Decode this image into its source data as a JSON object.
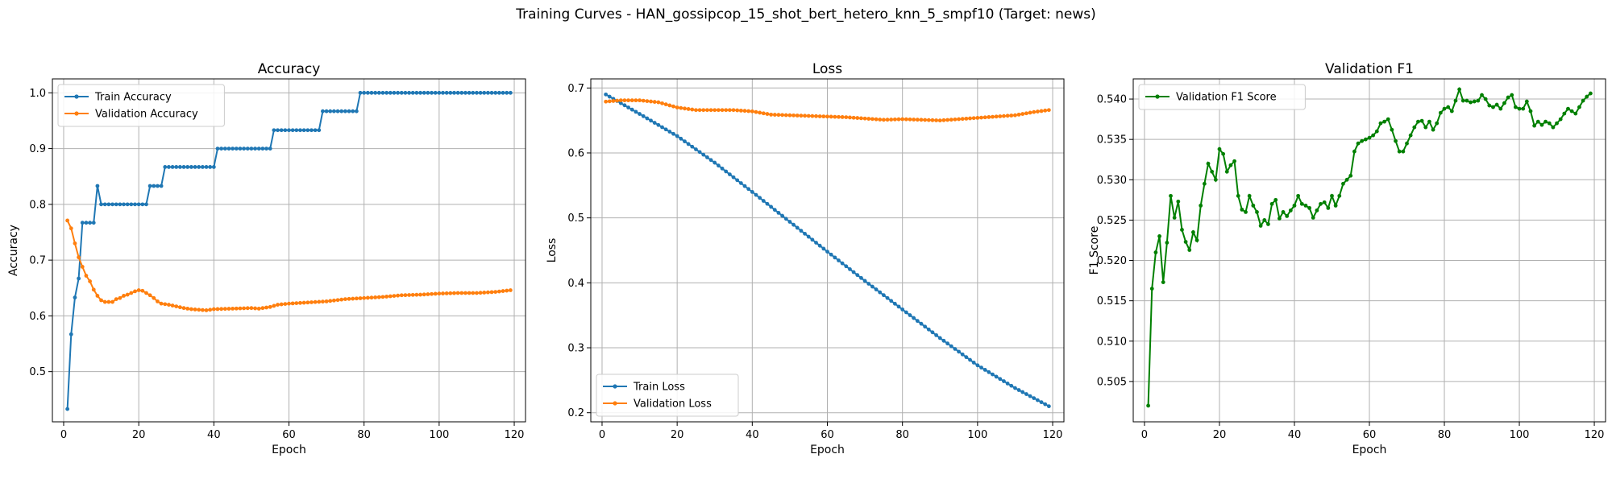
{
  "suptitle": "Training Curves - HAN_gossipcop_15_shot_bert_hetero_knn_5_smpf10 (Target: news)",
  "colors": {
    "train": "#1f77b4",
    "val": "#ff7f0e",
    "f1": "#008000",
    "grid": "#b0b0b0"
  },
  "chart_data": [
    {
      "type": "line",
      "title": "Accuracy",
      "xlabel": "Epoch",
      "ylabel": "Accuracy",
      "xlim": [
        -3,
        123
      ],
      "ylim": [
        0.41,
        1.025
      ],
      "xticks": [
        0,
        20,
        40,
        60,
        80,
        100,
        120
      ],
      "yticks": [
        0.5,
        0.6,
        0.7,
        0.8,
        0.9,
        1.0
      ],
      "ytick_labels": [
        "0.5",
        "0.6",
        "0.7",
        "0.8",
        "0.9",
        "1.0"
      ],
      "grid": true,
      "legend_position": "top-left",
      "x": {
        "start": 1,
        "end": 119
      },
      "series": [
        {
          "name": "Train Accuracy",
          "color": "#1f77b4",
          "steps": [
            [
              1,
              0.433
            ],
            [
              2,
              0.567
            ],
            [
              3,
              0.633
            ],
            [
              4,
              0.667
            ],
            [
              5,
              0.767
            ],
            [
              9,
              0.833
            ],
            [
              10,
              0.8
            ],
            [
              23,
              0.833
            ],
            [
              27,
              0.867
            ],
            [
              41,
              0.9
            ],
            [
              56,
              0.933
            ],
            [
              69,
              0.967
            ],
            [
              79,
              1.0
            ]
          ]
        },
        {
          "name": "Validation Accuracy",
          "color": "#ff7f0e",
          "points": [
            [
              1,
              0.771
            ],
            [
              2,
              0.757
            ],
            [
              3,
              0.73
            ],
            [
              4,
              0.705
            ],
            [
              5,
              0.688
            ],
            [
              6,
              0.672
            ],
            [
              7,
              0.662
            ],
            [
              8,
              0.647
            ],
            [
              9,
              0.636
            ],
            [
              10,
              0.628
            ],
            [
              11,
              0.625
            ],
            [
              12,
              0.625
            ],
            [
              13,
              0.625
            ],
            [
              14,
              0.63
            ],
            [
              15,
              0.632
            ],
            [
              16,
              0.636
            ],
            [
              17,
              0.638
            ],
            [
              18,
              0.641
            ],
            [
              19,
              0.644
            ],
            [
              20,
              0.646
            ],
            [
              21,
              0.645
            ],
            [
              22,
              0.641
            ],
            [
              23,
              0.637
            ],
            [
              24,
              0.632
            ],
            [
              25,
              0.626
            ],
            [
              26,
              0.622
            ],
            [
              28,
              0.62
            ],
            [
              30,
              0.617
            ],
            [
              32,
              0.614
            ],
            [
              34,
              0.612
            ],
            [
              36,
              0.611
            ],
            [
              38,
              0.61
            ],
            [
              40,
              0.612
            ],
            [
              45,
              0.613
            ],
            [
              50,
              0.614
            ],
            [
              52,
              0.613
            ],
            [
              55,
              0.616
            ],
            [
              57,
              0.62
            ],
            [
              60,
              0.622
            ],
            [
              65,
              0.624
            ],
            [
              70,
              0.626
            ],
            [
              75,
              0.63
            ],
            [
              80,
              0.632
            ],
            [
              85,
              0.634
            ],
            [
              90,
              0.637
            ],
            [
              95,
              0.638
            ],
            [
              100,
              0.64
            ],
            [
              105,
              0.641
            ],
            [
              110,
              0.641
            ],
            [
              115,
              0.643
            ],
            [
              119,
              0.646
            ]
          ]
        }
      ]
    },
    {
      "type": "line",
      "title": "Loss",
      "xlabel": "Epoch",
      "ylabel": "Loss",
      "xlim": [
        -3,
        123
      ],
      "ylim": [
        0.186,
        0.714
      ],
      "xticks": [
        0,
        20,
        40,
        60,
        80,
        100,
        120
      ],
      "yticks": [
        0.2,
        0.3,
        0.4,
        0.5,
        0.6,
        0.7
      ],
      "ytick_labels": [
        "0.2",
        "0.3",
        "0.4",
        "0.5",
        "0.6",
        "0.7"
      ],
      "grid": true,
      "legend_position": "bottom-left",
      "x": {
        "start": 1,
        "end": 119
      },
      "series": [
        {
          "name": "Train Loss",
          "color": "#1f77b4",
          "points": [
            [
              1,
              0.69
            ],
            [
              10,
              0.66
            ],
            [
              20,
              0.626
            ],
            [
              30,
              0.585
            ],
            [
              40,
              0.54
            ],
            [
              50,
              0.494
            ],
            [
              60,
              0.448
            ],
            [
              70,
              0.403
            ],
            [
              80,
              0.359
            ],
            [
              90,
              0.315
            ],
            [
              100,
              0.273
            ],
            [
              110,
              0.238
            ],
            [
              119,
              0.21
            ]
          ]
        },
        {
          "name": "Validation Loss",
          "color": "#ff7f0e",
          "points": [
            [
              1,
              0.679
            ],
            [
              5,
              0.681
            ],
            [
              10,
              0.681
            ],
            [
              15,
              0.678
            ],
            [
              20,
              0.67
            ],
            [
              25,
              0.666
            ],
            [
              30,
              0.666
            ],
            [
              35,
              0.666
            ],
            [
              40,
              0.664
            ],
            [
              45,
              0.659
            ],
            [
              50,
              0.658
            ],
            [
              55,
              0.657
            ],
            [
              60,
              0.656
            ],
            [
              65,
              0.655
            ],
            [
              70,
              0.653
            ],
            [
              75,
              0.651
            ],
            [
              80,
              0.652
            ],
            [
              85,
              0.651
            ],
            [
              90,
              0.65
            ],
            [
              95,
              0.652
            ],
            [
              100,
              0.654
            ],
            [
              105,
              0.656
            ],
            [
              110,
              0.658
            ],
            [
              115,
              0.663
            ],
            [
              119,
              0.666
            ]
          ]
        }
      ]
    },
    {
      "type": "line",
      "title": "Validation F1",
      "xlabel": "Epoch",
      "ylabel": "F1 Score",
      "xlim": [
        -3,
        123
      ],
      "ylim": [
        0.5,
        0.5425
      ],
      "xticks": [
        0,
        20,
        40,
        60,
        80,
        100,
        120
      ],
      "yticks": [
        0.505,
        0.51,
        0.515,
        0.52,
        0.525,
        0.53,
        0.535,
        0.54
      ],
      "ytick_labels": [
        "0.505",
        "0.510",
        "0.515",
        "0.520",
        "0.525",
        "0.530",
        "0.535",
        "0.540"
      ],
      "grid": true,
      "legend_position": "top-left",
      "x": {
        "start": 1,
        "end": 119
      },
      "series": [
        {
          "name": "Validation F1 Score",
          "color": "#008000",
          "points": [
            [
              1,
              0.502
            ],
            [
              2,
              0.5165
            ],
            [
              3,
              0.521
            ],
            [
              4,
              0.523
            ],
            [
              5,
              0.5173
            ],
            [
              6,
              0.5222
            ],
            [
              7,
              0.528
            ],
            [
              8,
              0.5253
            ],
            [
              9,
              0.5273
            ],
            [
              10,
              0.5238
            ],
            [
              11,
              0.5223
            ],
            [
              12,
              0.5213
            ],
            [
              13,
              0.5235
            ],
            [
              14,
              0.5225
            ],
            [
              15,
              0.5268
            ],
            [
              16,
              0.5295
            ],
            [
              17,
              0.532
            ],
            [
              18,
              0.531
            ],
            [
              19,
              0.53
            ],
            [
              20,
              0.5338
            ],
            [
              21,
              0.5332
            ],
            [
              22,
              0.531
            ],
            [
              23,
              0.5318
            ],
            [
              24,
              0.5323
            ],
            [
              25,
              0.528
            ],
            [
              26,
              0.5263
            ],
            [
              27,
              0.526
            ],
            [
              28,
              0.528
            ],
            [
              29,
              0.5268
            ],
            [
              30,
              0.526
            ],
            [
              31,
              0.5243
            ],
            [
              32,
              0.525
            ],
            [
              33,
              0.5245
            ],
            [
              34,
              0.527
            ],
            [
              35,
              0.5275
            ],
            [
              36,
              0.5252
            ],
            [
              37,
              0.526
            ],
            [
              38,
              0.5255
            ],
            [
              39,
              0.5262
            ],
            [
              40,
              0.5268
            ],
            [
              41,
              0.528
            ],
            [
              42,
              0.527
            ],
            [
              43,
              0.5268
            ],
            [
              44,
              0.5265
            ],
            [
              45,
              0.5253
            ],
            [
              46,
              0.5262
            ],
            [
              47,
              0.527
            ],
            [
              48,
              0.5272
            ],
            [
              49,
              0.5265
            ],
            [
              50,
              0.528
            ],
            [
              51,
              0.5268
            ],
            [
              52,
              0.528
            ],
            [
              53,
              0.5295
            ],
            [
              54,
              0.53
            ],
            [
              55,
              0.5305
            ],
            [
              56,
              0.5335
            ],
            [
              57,
              0.5345
            ],
            [
              58,
              0.5348
            ],
            [
              59,
              0.535
            ],
            [
              60,
              0.5352
            ],
            [
              61,
              0.5355
            ],
            [
              62,
              0.536
            ],
            [
              63,
              0.537
            ],
            [
              64,
              0.5372
            ],
            [
              65,
              0.5375
            ],
            [
              66,
              0.5362
            ],
            [
              67,
              0.5348
            ],
            [
              68,
              0.5335
            ],
            [
              69,
              0.5335
            ],
            [
              70,
              0.5345
            ],
            [
              71,
              0.5355
            ],
            [
              72,
              0.5365
            ],
            [
              73,
              0.5372
            ],
            [
              74,
              0.5373
            ],
            [
              75,
              0.5365
            ],
            [
              76,
              0.5372
            ],
            [
              77,
              0.5362
            ],
            [
              78,
              0.537
            ],
            [
              79,
              0.5383
            ],
            [
              80,
              0.5388
            ],
            [
              81,
              0.539
            ],
            [
              82,
              0.5385
            ],
            [
              83,
              0.5398
            ],
            [
              84,
              0.5412
            ],
            [
              85,
              0.5398
            ],
            [
              86,
              0.5398
            ],
            [
              87,
              0.5396
            ],
            [
              88,
              0.5397
            ],
            [
              89,
              0.5398
            ],
            [
              90,
              0.5405
            ],
            [
              91,
              0.54
            ],
            [
              92,
              0.5392
            ],
            [
              93,
              0.539
            ],
            [
              94,
              0.5393
            ],
            [
              95,
              0.5388
            ],
            [
              96,
              0.5395
            ],
            [
              97,
              0.5402
            ],
            [
              98,
              0.5405
            ],
            [
              99,
              0.539
            ],
            [
              100,
              0.5388
            ],
            [
              101,
              0.5388
            ],
            [
              102,
              0.5397
            ],
            [
              103,
              0.5385
            ],
            [
              104,
              0.5367
            ],
            [
              105,
              0.5372
            ],
            [
              106,
              0.5368
            ],
            [
              107,
              0.5372
            ],
            [
              108,
              0.537
            ],
            [
              109,
              0.5365
            ],
            [
              110,
              0.537
            ],
            [
              111,
              0.5375
            ],
            [
              112,
              0.5382
            ],
            [
              113,
              0.5388
            ],
            [
              114,
              0.5385
            ],
            [
              115,
              0.5382
            ],
            [
              116,
              0.539
            ],
            [
              117,
              0.5398
            ],
            [
              118,
              0.5403
            ],
            [
              119,
              0.5407
            ]
          ]
        }
      ]
    }
  ]
}
